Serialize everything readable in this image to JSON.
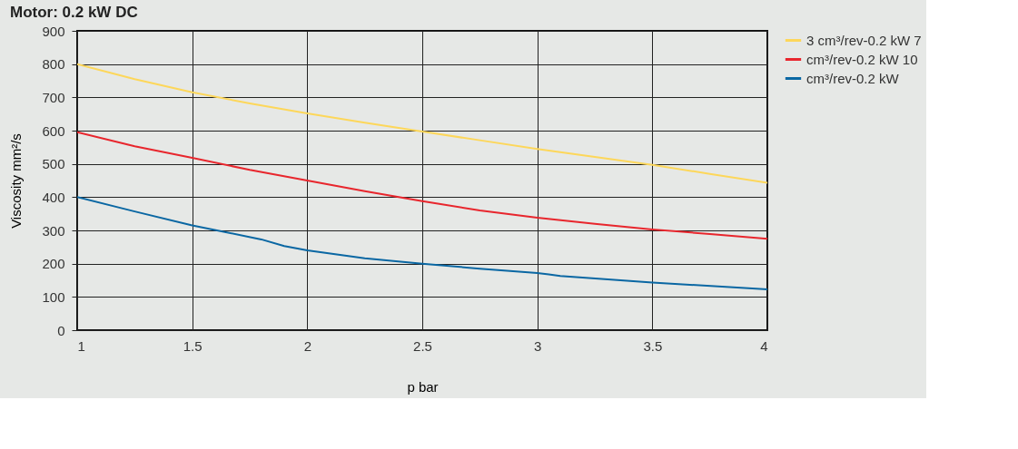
{
  "chart_data": {
    "type": "line",
    "title": "Motor: 0.2 kW DC",
    "xlabel": "p bar",
    "ylabel": "Viscosity mm²/s",
    "xlim": [
      1,
      4
    ],
    "xticks": [
      1,
      1.5,
      2,
      2.5,
      3,
      3.5,
      4
    ],
    "ylim": [
      0,
      900
    ],
    "yticks": [
      0,
      100,
      200,
      300,
      400,
      500,
      600,
      700,
      800,
      900
    ],
    "grid": true,
    "legend": "right",
    "line_style": "solid",
    "marker": "none",
    "series": [
      {
        "name": "3 cm³/rev-0.2 kW 7",
        "color": "#fdd75a",
        "x": [
          1,
          1.25,
          1.5,
          1.75,
          2,
          2.25,
          2.5,
          2.75,
          3,
          3.25,
          3.5,
          3.75,
          4
        ],
        "values": [
          800,
          755,
          715,
          682,
          652,
          624,
          597,
          571,
          545,
          521,
          497,
          470,
          443
        ]
      },
      {
        "name": "cm³/rev-0.2 kW 10",
        "color": "#e8262d",
        "x": [
          1,
          1.25,
          1.5,
          1.75,
          2,
          2.25,
          2.5,
          2.75,
          3,
          3.25,
          3.5,
          3.75,
          4
        ],
        "values": [
          595,
          553,
          518,
          482,
          450,
          418,
          388,
          360,
          338,
          320,
          303,
          289,
          275
        ]
      },
      {
        "name": "cm³/rev-0.2 kW",
        "color": "#0a67a3",
        "x": [
          1,
          1.25,
          1.5,
          1.8,
          1.9,
          2,
          2.25,
          2.5,
          2.75,
          3,
          3.05,
          3.1,
          3.5,
          4
        ],
        "values": [
          400,
          357,
          315,
          273,
          253,
          240,
          216,
          200,
          185,
          172,
          168,
          163,
          143,
          123
        ]
      }
    ]
  }
}
